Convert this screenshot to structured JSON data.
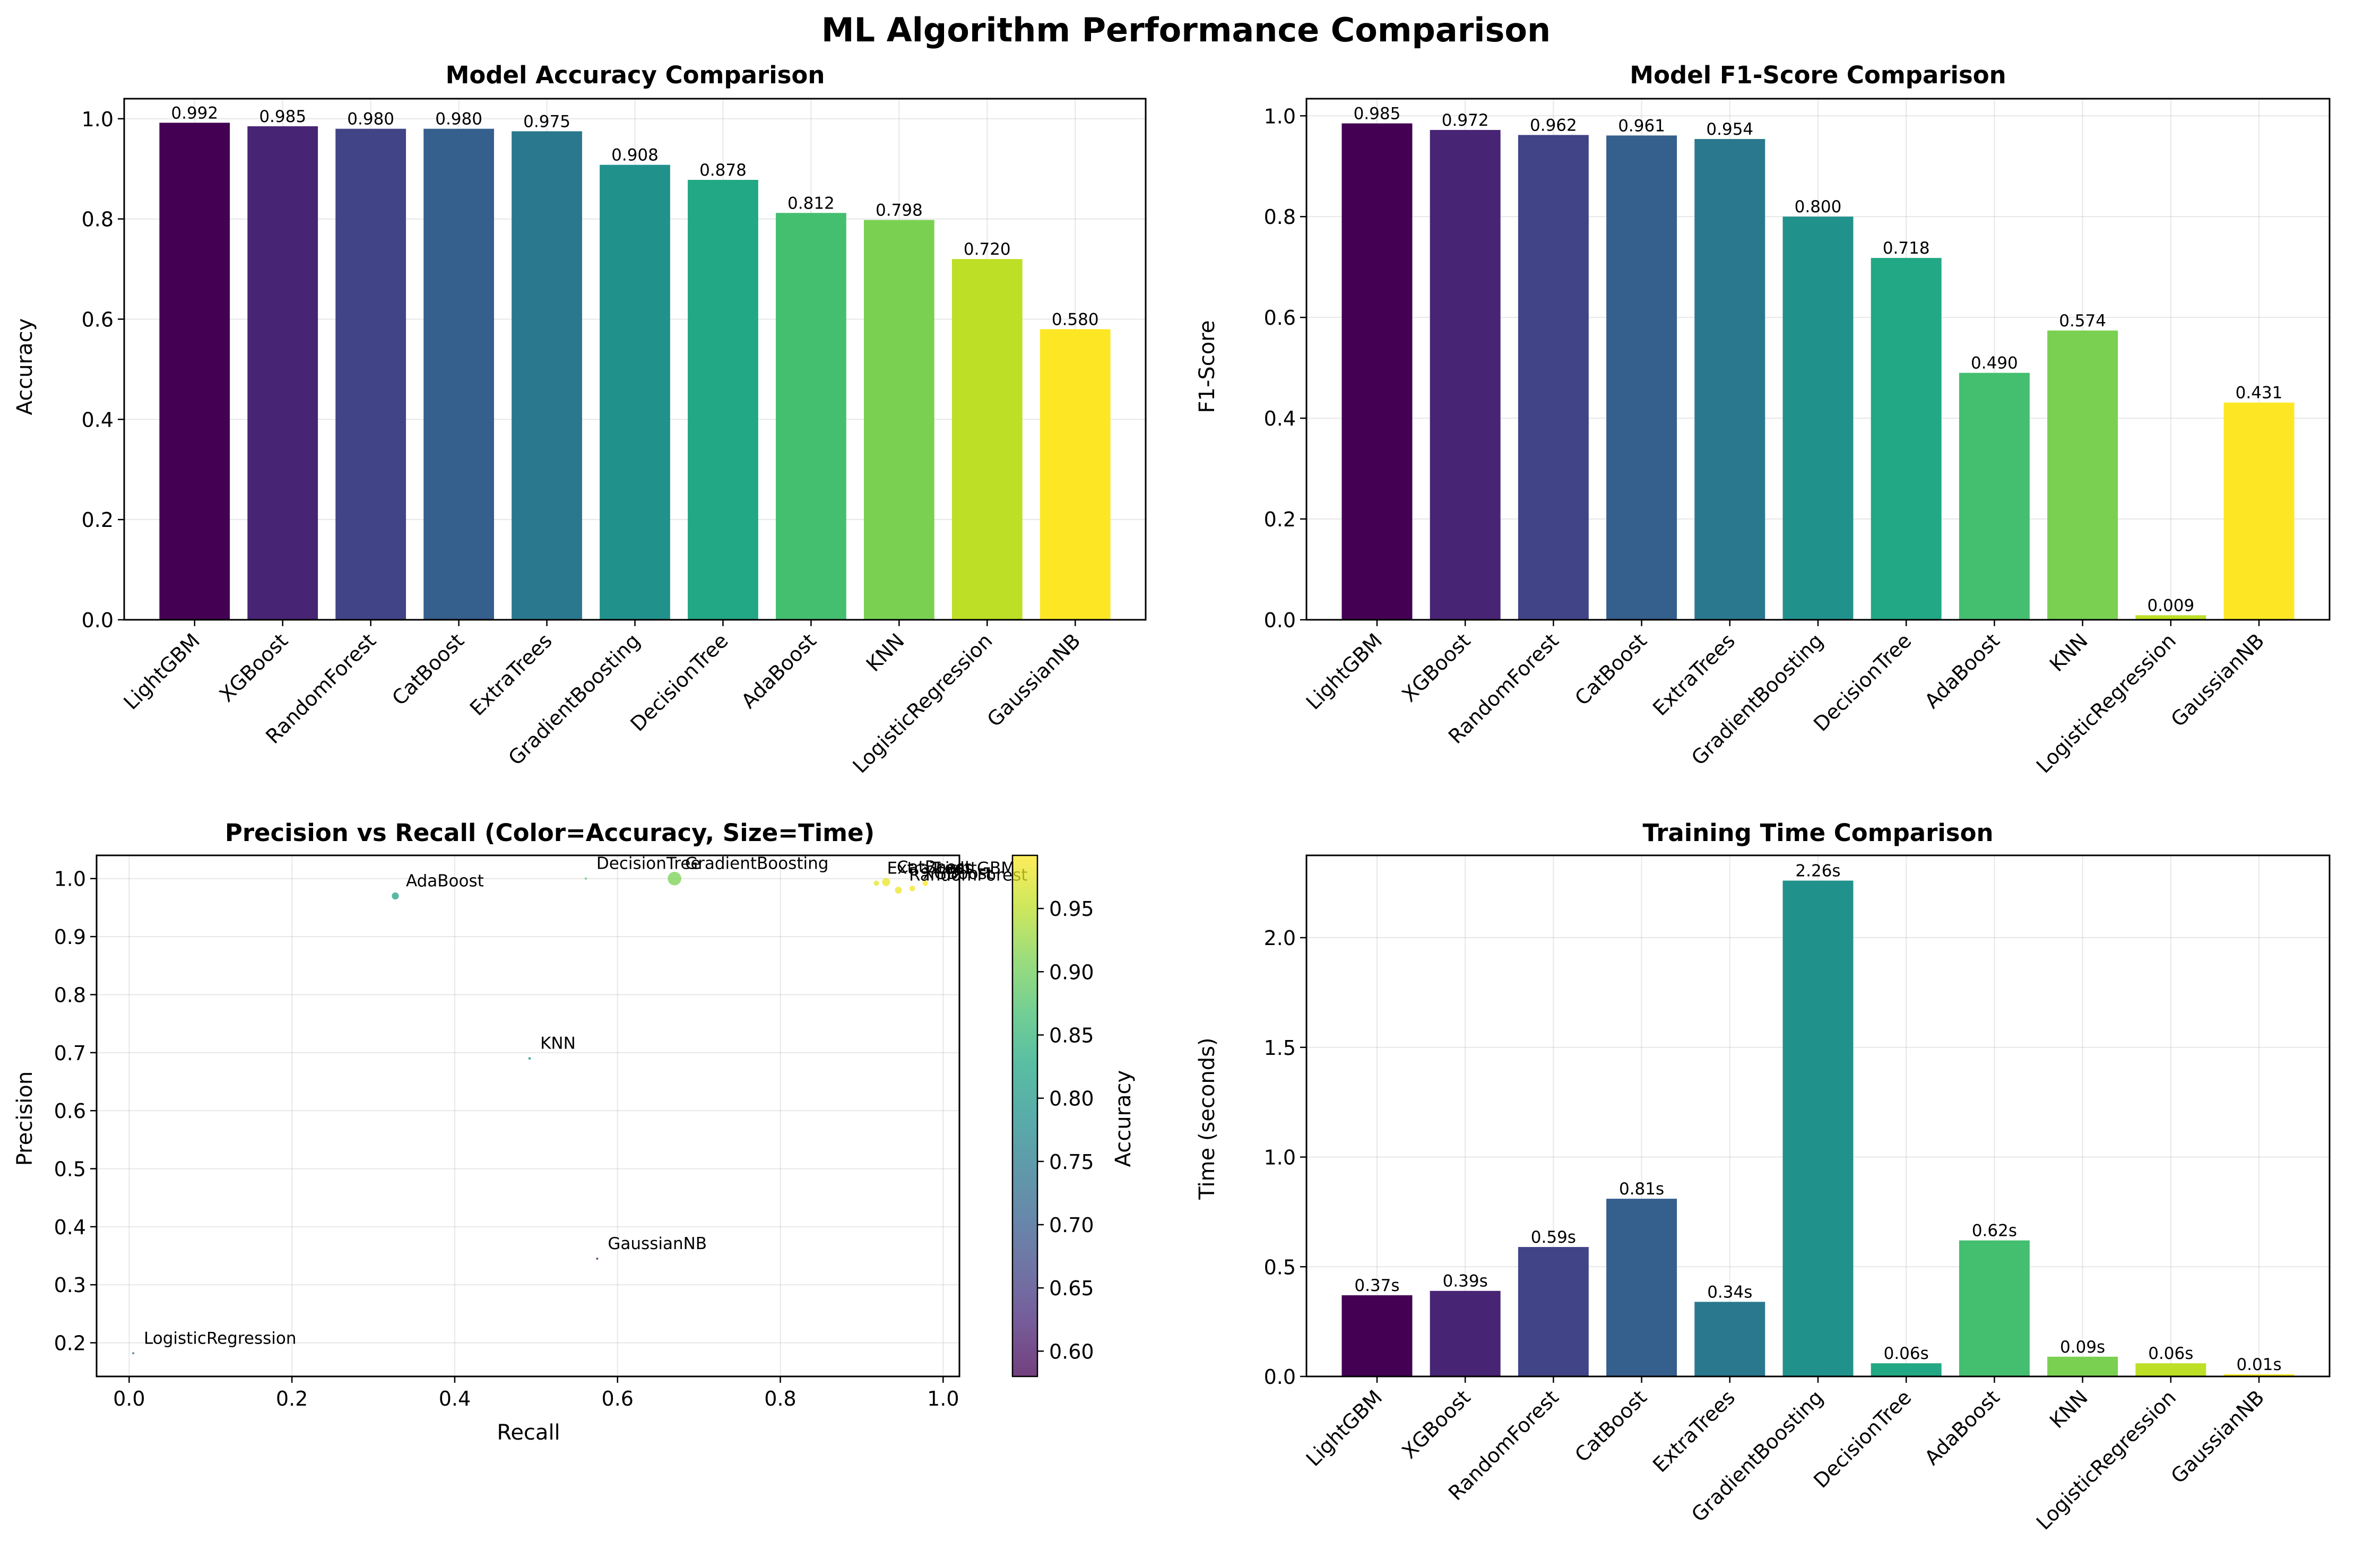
{
  "figure": {
    "suptitle": "ML Algorithm Performance Comparison"
  },
  "panels": {
    "accuracy": {
      "title": "Model Accuracy Comparison",
      "ylabel": "Accuracy"
    },
    "f1": {
      "title": "Model F1-Score Comparison",
      "ylabel": "F1-Score"
    },
    "scatter": {
      "title": "Precision vs Recall (Color=Accuracy, Size=Time)",
      "xlabel": "Recall",
      "ylabel": "Precision",
      "colorbar_label": "Accuracy"
    },
    "time": {
      "title": "Training Time Comparison",
      "ylabel": "Time (seconds)"
    }
  },
  "colors": {
    "LightGBM": "#440154",
    "XGBoost": "#482475",
    "RandomForest": "#414487",
    "CatBoost": "#355f8d",
    "ExtraTrees": "#2a788e",
    "GradientBoosting": "#21918c",
    "DecisionTree": "#22a884",
    "AdaBoost": "#44bf70",
    "KNN": "#7ad151",
    "LogisticRegression": "#bddf26",
    "GaussianNB": "#fde725",
    "grid": "#b0b0b0"
  },
  "chart_data": [
    {
      "id": "accuracy",
      "type": "bar",
      "title": "Model Accuracy Comparison",
      "xlabel": "",
      "ylabel": "Accuracy",
      "categories": [
        "LightGBM",
        "XGBoost",
        "RandomForest",
        "CatBoost",
        "ExtraTrees",
        "GradientBoosting",
        "DecisionTree",
        "AdaBoost",
        "KNN",
        "LogisticRegression",
        "GaussianNB"
      ],
      "values": [
        0.992,
        0.985,
        0.98,
        0.98,
        0.975,
        0.908,
        0.878,
        0.812,
        0.798,
        0.72,
        0.58
      ],
      "data_labels": [
        "0.992",
        "0.985",
        "0.980",
        "0.980",
        "0.975",
        "0.908",
        "0.878",
        "0.812",
        "0.798",
        "0.720",
        "0.580"
      ],
      "ylim": [
        0,
        1.04
      ],
      "yticks": [
        0.0,
        0.2,
        0.4,
        0.6,
        0.8,
        1.0
      ],
      "ytick_labels": [
        "0.0",
        "0.2",
        "0.4",
        "0.6",
        "0.8",
        "1.0"
      ],
      "grid": true
    },
    {
      "id": "f1",
      "type": "bar",
      "title": "Model F1-Score Comparison",
      "xlabel": "",
      "ylabel": "F1-Score",
      "categories": [
        "LightGBM",
        "XGBoost",
        "RandomForest",
        "CatBoost",
        "ExtraTrees",
        "GradientBoosting",
        "DecisionTree",
        "AdaBoost",
        "KNN",
        "LogisticRegression",
        "GaussianNB"
      ],
      "values": [
        0.985,
        0.972,
        0.962,
        0.961,
        0.954,
        0.8,
        0.718,
        0.49,
        0.574,
        0.009,
        0.431
      ],
      "data_labels": [
        "0.985",
        "0.972",
        "0.962",
        "0.961",
        "0.954",
        "0.800",
        "0.718",
        "0.490",
        "0.574",
        "0.009",
        "0.431"
      ],
      "ylim": [
        0,
        1.034
      ],
      "yticks": [
        0.0,
        0.2,
        0.4,
        0.6,
        0.8,
        1.0
      ],
      "ytick_labels": [
        "0.0",
        "0.2",
        "0.4",
        "0.6",
        "0.8",
        "1.0"
      ],
      "grid": true
    },
    {
      "id": "scatter",
      "type": "scatter",
      "title": "Precision vs Recall (Color=Accuracy, Size=Time)",
      "xlabel": "Recall",
      "ylabel": "Precision",
      "points": [
        {
          "label": "LightGBM",
          "recall": 0.978,
          "precision": 0.992,
          "accuracy": 0.992,
          "time": 0.37
        },
        {
          "label": "XGBoost",
          "recall": 0.962,
          "precision": 0.983,
          "accuracy": 0.985,
          "time": 0.39
        },
        {
          "label": "RandomForest",
          "recall": 0.945,
          "precision": 0.98,
          "accuracy": 0.98,
          "time": 0.59
        },
        {
          "label": "CatBoost",
          "recall": 0.93,
          "precision": 0.994,
          "accuracy": 0.98,
          "time": 0.81
        },
        {
          "label": "ExtraTrees",
          "recall": 0.918,
          "precision": 0.992,
          "accuracy": 0.975,
          "time": 0.34
        },
        {
          "label": "GradientBoosting",
          "recall": 0.67,
          "precision": 1.0,
          "accuracy": 0.908,
          "time": 2.26
        },
        {
          "label": "DecisionTree",
          "recall": 0.561,
          "precision": 1.0,
          "accuracy": 0.878,
          "time": 0.06
        },
        {
          "label": "AdaBoost",
          "recall": 0.327,
          "precision": 0.97,
          "accuracy": 0.812,
          "time": 0.62
        },
        {
          "label": "KNN",
          "recall": 0.492,
          "precision": 0.69,
          "accuracy": 0.798,
          "time": 0.09
        },
        {
          "label": "LogisticRegression",
          "recall": 0.005,
          "precision": 0.182,
          "accuracy": 0.72,
          "time": 0.06
        },
        {
          "label": "GaussianNB",
          "recall": 0.575,
          "precision": 0.345,
          "accuracy": 0.58,
          "time": 0.01
        }
      ],
      "xlim": [
        -0.04,
        1.02
      ],
      "ylim": [
        0.142,
        1.04
      ],
      "xticks": [
        0.0,
        0.2,
        0.4,
        0.6,
        0.8,
        1.0
      ],
      "xtick_labels": [
        "0.0",
        "0.2",
        "0.4",
        "0.6",
        "0.8",
        "1.0"
      ],
      "yticks": [
        0.2,
        0.3,
        0.4,
        0.5,
        0.6,
        0.7,
        0.8,
        0.9,
        1.0
      ],
      "ytick_labels": [
        "0.2",
        "0.3",
        "0.4",
        "0.5",
        "0.6",
        "0.7",
        "0.8",
        "0.9",
        "1.0"
      ],
      "colorbar": {
        "label": "Accuracy",
        "range": [
          0.58,
          0.992
        ],
        "ticks": [
          0.6,
          0.65,
          0.7,
          0.75,
          0.8,
          0.85,
          0.9,
          0.95
        ],
        "tick_labels": [
          "0.60",
          "0.65",
          "0.70",
          "0.75",
          "0.80",
          "0.85",
          "0.90",
          "0.95"
        ],
        "colormap": "viridis"
      },
      "grid": true
    },
    {
      "id": "time",
      "type": "bar",
      "title": "Training Time Comparison",
      "xlabel": "",
      "ylabel": "Time (seconds)",
      "categories": [
        "LightGBM",
        "XGBoost",
        "RandomForest",
        "CatBoost",
        "ExtraTrees",
        "GradientBoosting",
        "DecisionTree",
        "AdaBoost",
        "KNN",
        "LogisticRegression",
        "GaussianNB"
      ],
      "values": [
        0.37,
        0.39,
        0.59,
        0.81,
        0.34,
        2.26,
        0.06,
        0.62,
        0.09,
        0.06,
        0.01
      ],
      "data_labels": [
        "0.37s",
        "0.39s",
        "0.59s",
        "0.81s",
        "0.34s",
        "2.26s",
        "0.06s",
        "0.62s",
        "0.09s",
        "0.06s",
        "0.01s"
      ],
      "ylim": [
        0,
        2.375
      ],
      "yticks": [
        0.0,
        0.5,
        1.0,
        1.5,
        2.0
      ],
      "ytick_labels": [
        "0.0",
        "0.5",
        "1.0",
        "1.5",
        "2.0"
      ],
      "grid": true
    }
  ]
}
